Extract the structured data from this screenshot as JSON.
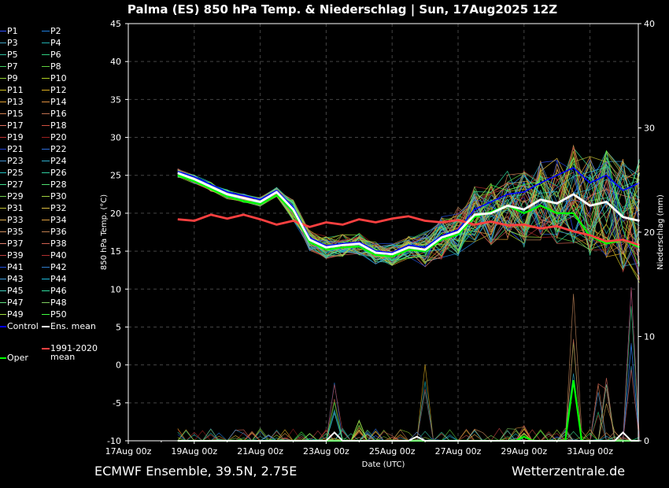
{
  "chart_data": {
    "type": "line",
    "title": "Palma  (ES)  850 hPa Temp. & Niederschlag | Sun, 17Aug2025 12Z",
    "xlabel": "Date (UTC)",
    "ylabel": "850 hPa Temp. (°C)",
    "ylabel_right": "Niederschlag (mm)",
    "ylim": [
      -10,
      45
    ],
    "ylim_right": [
      0,
      40
    ],
    "yticks": [
      -10,
      -5,
      0,
      5,
      10,
      15,
      20,
      25,
      30,
      35,
      40,
      45
    ],
    "yticks_right": [
      0,
      10,
      20,
      30,
      40
    ],
    "x_ticks": [
      "17Aug 00z",
      "19Aug 00z",
      "21Aug 00z",
      "23Aug 00z",
      "25Aug 00z",
      "27Aug 00z",
      "29Aug 00z",
      "31Aug 00z"
    ],
    "x_range_days": [
      0,
      15.5
    ],
    "grid": true,
    "series": [
      {
        "name": "Ens. mean",
        "color": "#ffffff",
        "days": [
          1.5,
          2,
          2.5,
          3,
          3.5,
          4,
          4.5,
          5,
          5.5,
          6,
          6.5,
          7,
          7.5,
          8,
          8.5,
          9,
          9.5,
          10,
          10.5,
          11,
          11.5,
          12,
          12.5,
          13,
          13.5,
          14,
          14.5,
          15,
          15.5
        ],
        "values": [
          25.3,
          24.5,
          23.5,
          22.5,
          22.0,
          21.5,
          22.8,
          20.5,
          16.5,
          15.5,
          15.8,
          16.0,
          14.8,
          14.6,
          15.5,
          15.2,
          16.8,
          17.5,
          19.8,
          20.0,
          21.0,
          20.5,
          21.8,
          21.3,
          22.5,
          21.0,
          21.5,
          19.5,
          19.0
        ]
      },
      {
        "name": "Control",
        "color": "#0000ff",
        "days": [
          1.5,
          2,
          2.5,
          3,
          3.5,
          4,
          4.5,
          5,
          5.5,
          6,
          6.5,
          7,
          7.5,
          8,
          8.5,
          9,
          9.5,
          10,
          10.5,
          11,
          11.5,
          12,
          12.5,
          13,
          13.5,
          14,
          14.5,
          15,
          15.5
        ],
        "values": [
          25.5,
          24.8,
          23.8,
          22.8,
          22.3,
          21.8,
          23.0,
          20.8,
          16.8,
          15.7,
          16.0,
          16.2,
          15.0,
          14.8,
          15.8,
          15.5,
          17.0,
          17.8,
          20.5,
          21.5,
          22.5,
          22.8,
          24.0,
          25.0,
          26.0,
          24.0,
          25.0,
          23.0,
          24.0
        ]
      },
      {
        "name": "Oper",
        "color": "#00ff00",
        "days": [
          1.5,
          2,
          2.5,
          3,
          3.5,
          4,
          4.5,
          5,
          5.5,
          6,
          6.5,
          7,
          7.5,
          8,
          8.5,
          9,
          9.5,
          10,
          10.5,
          11,
          11.5,
          12,
          12.5,
          13,
          13.5,
          14,
          14.5,
          15,
          15.5
        ],
        "values": [
          25.0,
          24.2,
          23.2,
          22.2,
          21.6,
          21.2,
          22.4,
          20.2,
          16.2,
          15.2,
          15.5,
          15.6,
          14.5,
          14.3,
          15.2,
          15.0,
          16.5,
          17.2,
          19.5,
          20.2,
          21.0,
          20.0,
          21.0,
          20.0,
          20.0,
          17.0,
          16.0,
          16.5,
          15.5
        ]
      },
      {
        "name": "1991-2020 mean",
        "color": "#ff4040",
        "days": [
          1.5,
          2,
          2.5,
          3,
          3.5,
          4,
          4.5,
          5,
          5.5,
          6,
          6.5,
          7,
          7.5,
          8,
          8.5,
          9,
          9.5,
          10,
          10.5,
          11,
          11.5,
          12,
          12.5,
          13,
          13.5,
          14,
          14.5,
          15,
          15.5
        ],
        "values": [
          19.2,
          19.0,
          19.8,
          19.3,
          19.8,
          19.2,
          18.5,
          19.0,
          18.2,
          18.8,
          18.5,
          19.2,
          18.8,
          19.3,
          19.6,
          19.0,
          18.8,
          19.1,
          18.5,
          18.9,
          18.4,
          18.5,
          18.0,
          18.3,
          17.6,
          17.1,
          16.3,
          16.5,
          15.8
        ]
      }
    ],
    "precip_peaks": [
      {
        "day": 3.8,
        "mm": 1.0
      },
      {
        "day": 6.2,
        "mm": 6.0
      },
      {
        "day": 7.0,
        "mm": 2.0
      },
      {
        "day": 8.9,
        "mm": 8.5
      },
      {
        "day": 12.0,
        "mm": 1.5
      },
      {
        "day": 13.6,
        "mm": 14.5
      },
      {
        "day": 14.2,
        "mm": 6.0
      },
      {
        "day": 14.5,
        "mm": 8.8
      },
      {
        "day": 15.3,
        "mm": 14.8
      },
      {
        "day": 15.9,
        "mm": 8.0
      }
    ]
  },
  "legend": {
    "members": [
      "P1",
      "P2",
      "P3",
      "P4",
      "P5",
      "P6",
      "P7",
      "P8",
      "P9",
      "P10",
      "P11",
      "P12",
      "P13",
      "P14",
      "P15",
      "P16",
      "P17",
      "P18",
      "P19",
      "P20",
      "P21",
      "P22",
      "P23",
      "P24",
      "P25",
      "P26",
      "P27",
      "P28",
      "P29",
      "P30",
      "P31",
      "P32",
      "P33",
      "P34",
      "P35",
      "P36",
      "P37",
      "P38",
      "P39",
      "P40",
      "P41",
      "P42",
      "P43",
      "P44",
      "P45",
      "P46",
      "P47",
      "P48",
      "P49",
      "P50"
    ],
    "control": "Control",
    "ens_mean": "Ens. mean",
    "oper": "Oper",
    "clim_line1": "1991-2020",
    "clim_line2": "mean"
  },
  "member_colors": [
    "#3050ff",
    "#2080e0",
    "#40a0c0",
    "#20b0b0",
    "#30c0a0",
    "#30d080",
    "#40d060",
    "#60d040",
    "#90d030",
    "#b0d020",
    "#d0c020",
    "#e0b020",
    "#e0a030",
    "#e09040",
    "#d08050",
    "#c07050",
    "#e07060",
    "#d05040",
    "#c03030",
    "#a02020",
    "#2040d0",
    "#3070e0",
    "#4090d0",
    "#30b0d0",
    "#20c0c0",
    "#30d0a0",
    "#40e090",
    "#50e070",
    "#70d050",
    "#a0d040",
    "#c0c030",
    "#e0c040",
    "#e0b050",
    "#e0a040",
    "#d09060",
    "#c08050",
    "#e08070",
    "#d06050",
    "#c04040",
    "#b03030",
    "#2050e0",
    "#3080d0",
    "#40a0e0",
    "#20c0e0",
    "#40d0c0",
    "#30e0a0",
    "#60e080",
    "#80d060",
    "#a0e040",
    "#40ff40"
  ],
  "footer": {
    "left": "ECMWF Ensemble, 39.5N, 2.75E",
    "right": "Wetterzentrale.de"
  }
}
